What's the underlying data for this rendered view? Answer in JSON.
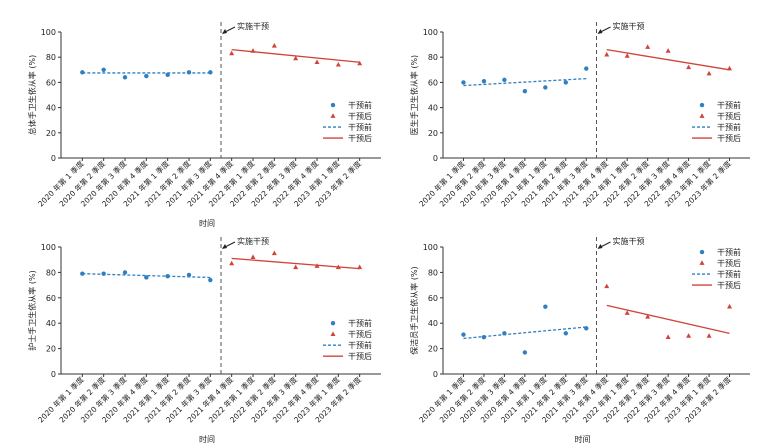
{
  "quarters": [
    "2020 年第 1 季度",
    "2020 年第 2 季度",
    "2020 年第 3 季度",
    "2020 年第 4 季度",
    "2021 年第 1 季度",
    "2021 年第 2 季度",
    "2021 年第 3 季度",
    "2021 年第 4 季度",
    "2022 年第 1 季度",
    "2022 年第 2 季度",
    "2022 年第 3 季度",
    "2022 年第 4 季度",
    "2023 年第 1 季度",
    "2023 年第 2 季度"
  ],
  "legend_labels": {
    "pre_point": "干预前",
    "post_point": "干预后",
    "pre_line": "干预前",
    "post_line": "干预后"
  },
  "colors": {
    "pre": "#2f7fc1",
    "post": "#d0443a"
  },
  "chart_data": [
    {
      "type": "scatter",
      "ylabel": "总体手卫生依从率 (%)",
      "xlabel": "时间",
      "intervention_label": "实施干预",
      "ylim": [
        0,
        100
      ],
      "yticks": [
        0,
        20,
        40,
        60,
        80,
        100
      ],
      "legend_position": "right-middle",
      "series": [
        {
          "name": "干预前",
          "kind": "points",
          "values": [
            68,
            70,
            64,
            65,
            66,
            68,
            68
          ]
        },
        {
          "name": "干预后",
          "kind": "points",
          "values": [
            83,
            85,
            89,
            79,
            76,
            74,
            75
          ]
        },
        {
          "name": "干预前",
          "kind": "trend",
          "x": [
            1,
            7
          ],
          "y": [
            67.5,
            67.5
          ]
        },
        {
          "name": "干预后",
          "kind": "trend",
          "x": [
            8,
            14
          ],
          "y": [
            86,
            76
          ]
        }
      ]
    },
    {
      "type": "scatter",
      "ylabel": "医生手卫生依从率 (%)",
      "xlabel": "",
      "intervention_label": "实施干预",
      "ylim": [
        0,
        100
      ],
      "yticks": [
        0,
        20,
        40,
        60,
        80,
        100
      ],
      "legend_position": "right-middle",
      "series": [
        {
          "name": "干预前",
          "kind": "points",
          "values": [
            60,
            61,
            62,
            53,
            56,
            60,
            71
          ]
        },
        {
          "name": "干预后",
          "kind": "points",
          "values": [
            82,
            81,
            88,
            85,
            72,
            67,
            71
          ]
        },
        {
          "name": "干预前",
          "kind": "trend",
          "x": [
            1,
            7
          ],
          "y": [
            57.5,
            63
          ]
        },
        {
          "name": "干预后",
          "kind": "trend",
          "x": [
            8,
            14
          ],
          "y": [
            86,
            70
          ]
        }
      ]
    },
    {
      "type": "scatter",
      "ylabel": "护士手卫生依从率 (%)",
      "xlabel": "时间",
      "intervention_label": "实施干预",
      "ylim": [
        0,
        100
      ],
      "yticks": [
        0,
        20,
        40,
        60,
        80,
        100
      ],
      "legend_position": "right-bottom",
      "series": [
        {
          "name": "干预前",
          "kind": "points",
          "values": [
            79,
            79,
            80,
            76,
            77,
            78,
            74
          ]
        },
        {
          "name": "干预后",
          "kind": "points",
          "values": [
            87,
            92,
            95,
            84,
            85,
            84,
            84
          ]
        },
        {
          "name": "干预前",
          "kind": "trend",
          "x": [
            1,
            7
          ],
          "y": [
            79,
            76
          ]
        },
        {
          "name": "干预后",
          "kind": "trend",
          "x": [
            8,
            14
          ],
          "y": [
            91,
            83
          ]
        }
      ]
    },
    {
      "type": "scatter",
      "ylabel": "保洁员手卫生依从率 (%)",
      "xlabel": "时间",
      "intervention_label": "实施干预",
      "ylim": [
        0,
        100
      ],
      "yticks": [
        0,
        20,
        40,
        60,
        80,
        100
      ],
      "legend_position": "right-top",
      "series": [
        {
          "name": "干预前",
          "kind": "points",
          "values": [
            31,
            29,
            32,
            17,
            53,
            32,
            36
          ]
        },
        {
          "name": "干预后",
          "kind": "points",
          "values": [
            69,
            48,
            45,
            29,
            30,
            30,
            53
          ]
        },
        {
          "name": "干预前",
          "kind": "trend",
          "x": [
            1,
            7
          ],
          "y": [
            28,
            37
          ]
        },
        {
          "name": "干预后",
          "kind": "trend",
          "x": [
            8,
            14
          ],
          "y": [
            54,
            32
          ]
        }
      ]
    }
  ]
}
